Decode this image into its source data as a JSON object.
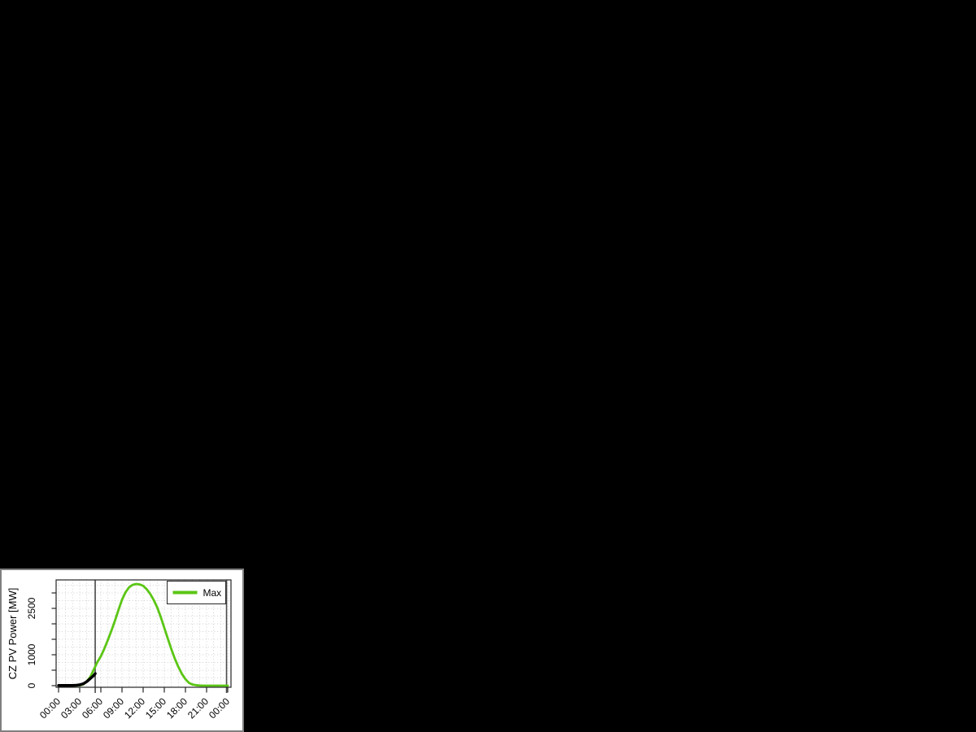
{
  "page": {
    "description_of_visible_content": "Black screen with a small PV power line chart panel in the bottom-left corner"
  },
  "colors": {
    "page_background": "#000000",
    "panel_background": "#ffffff",
    "panel_border": "#7f7f7f",
    "axis": "#262626",
    "grid": "#c4c4c4",
    "text": "#000000",
    "marker_line": "#4a4a4a",
    "max_series": "#5bc615",
    "measured_series": "#000000"
  },
  "chart_data": {
    "type": "line",
    "title": "",
    "xlabel": "",
    "ylabel": "CZ PV Power [MW]",
    "x_unit": "hours",
    "xlim_hours": [
      0,
      24
    ],
    "ylim": [
      0,
      3420
    ],
    "x_tick_hours": [
      0,
      3,
      6,
      9,
      12,
      15,
      18,
      21,
      24
    ],
    "x_tick_labels": [
      "00:00",
      "03:00",
      "06:00",
      "09:00",
      "12:00",
      "15:00",
      "18:00",
      "21:00",
      "00:00"
    ],
    "y_tick_values": [
      0,
      500,
      1000,
      1500,
      2000,
      2500,
      3000
    ],
    "y_labeled_ticks": [
      {
        "value": 0,
        "label": "0"
      },
      {
        "value": 1000,
        "label": "1000"
      },
      {
        "value": 2500,
        "label": "2500"
      }
    ],
    "grid": {
      "on": true,
      "style": "dotted",
      "vertical_every_hours": 1,
      "horizontal_every_mw": 250
    },
    "time_marker_hours": [
      5.2,
      23.83
    ],
    "legend": {
      "position": "top-right",
      "entries": [
        {
          "label": "Max",
          "color": "#5bc615"
        }
      ]
    },
    "series": [
      {
        "id": "max-forecast",
        "legend_label": "Max",
        "color": "#5bc615",
        "stroke_width": 2.8,
        "points": [
          [
            0,
            0
          ],
          [
            0.5,
            0
          ],
          [
            1,
            0
          ],
          [
            1.5,
            0
          ],
          [
            2,
            0
          ],
          [
            2.5,
            5
          ],
          [
            3,
            10
          ],
          [
            3.5,
            40
          ],
          [
            4,
            140
          ],
          [
            4.5,
            280
          ],
          [
            5,
            520
          ],
          [
            5.5,
            760
          ],
          [
            6,
            950
          ],
          [
            6.5,
            1200
          ],
          [
            7,
            1480
          ],
          [
            7.5,
            1780
          ],
          [
            8,
            2100
          ],
          [
            8.5,
            2450
          ],
          [
            9,
            2780
          ],
          [
            9.5,
            3020
          ],
          [
            10,
            3180
          ],
          [
            10.5,
            3260
          ],
          [
            11,
            3290
          ],
          [
            11.5,
            3275
          ],
          [
            12,
            3230
          ],
          [
            12.5,
            3120
          ],
          [
            13,
            2970
          ],
          [
            13.5,
            2770
          ],
          [
            14,
            2530
          ],
          [
            14.5,
            2220
          ],
          [
            15,
            1870
          ],
          [
            15.5,
            1520
          ],
          [
            16,
            1180
          ],
          [
            16.5,
            870
          ],
          [
            17,
            605
          ],
          [
            17.5,
            380
          ],
          [
            18,
            210
          ],
          [
            18.5,
            90
          ],
          [
            19,
            35
          ],
          [
            19.5,
            15
          ],
          [
            20,
            5
          ],
          [
            20.5,
            0
          ],
          [
            21,
            0
          ],
          [
            21.5,
            0
          ],
          [
            22,
            0
          ],
          [
            22.5,
            0
          ],
          [
            23,
            0
          ],
          [
            23.5,
            0
          ],
          [
            24,
            0
          ]
        ]
      },
      {
        "id": "measured",
        "legend_label": null,
        "color": "#000000",
        "stroke_width": 3.5,
        "points": [
          [
            0,
            5
          ],
          [
            0.5,
            5
          ],
          [
            1,
            5
          ],
          [
            1.5,
            5
          ],
          [
            2,
            8
          ],
          [
            2.5,
            12
          ],
          [
            3,
            25
          ],
          [
            3.5,
            60
          ],
          [
            4,
            130
          ],
          [
            4.5,
            230
          ],
          [
            5,
            330
          ],
          [
            5.2,
            390
          ]
        ]
      }
    ]
  }
}
